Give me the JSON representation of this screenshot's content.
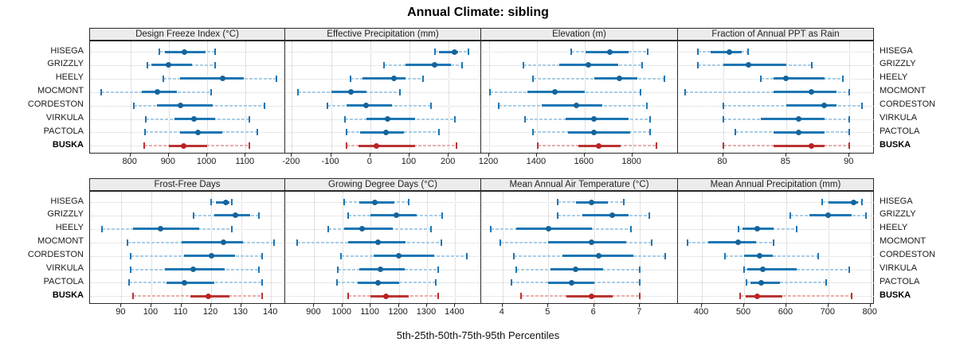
{
  "title": "Annual Climate: sibling",
  "caption": "5th-25th-50th-75th-95th Percentiles",
  "stations": [
    "HISEGA",
    "GRIZZLY",
    "HEELY",
    "MOCMONT",
    "CORDESTON",
    "VIRKULA",
    "PACTOLA",
    "BUSKA"
  ],
  "highlight_station": "BUSKA",
  "colors": {
    "series_main": "#1d76b4",
    "series_dot": "#15649a",
    "series_light": "#a9cde6",
    "highlight_main": "#bb3333",
    "highlight_dot": "#bb2222",
    "highlight_light": "#e9aeae",
    "header_bg": "#ececec",
    "border": "#2a2a2a",
    "grid": "#c4c4c4"
  },
  "chart_data": {
    "type": "scatter",
    "subtype": "dot-and-whisker percentile plot (5th-25th-50th-75th-95th)",
    "percentiles": [
      5,
      25,
      50,
      75,
      95
    ],
    "legend_position": "none",
    "grid": "dotted",
    "categories": [
      "HISEGA",
      "GRIZZLY",
      "HEELY",
      "MOCMONT",
      "CORDESTON",
      "VIRKULA",
      "PACTOLA",
      "BUSKA"
    ],
    "panels": [
      {
        "row": 0,
        "col": 0,
        "title": "Design Freeze Index (°C)",
        "ticks": [
          800,
          900,
          1000,
          1100
        ],
        "domain": [
          695,
          1205
        ],
        "values": [
          [
            875,
            890,
            940,
            995,
            1020
          ],
          [
            845,
            855,
            900,
            960,
            1020
          ],
          [
            885,
            930,
            1040,
            1095,
            1180
          ],
          [
            725,
            830,
            870,
            920,
            1010
          ],
          [
            810,
            870,
            930,
            1015,
            1150
          ],
          [
            840,
            915,
            965,
            1020,
            1110
          ],
          [
            838,
            930,
            975,
            1040,
            1130
          ],
          [
            835,
            900,
            938,
            1000,
            1110
          ]
        ]
      },
      {
        "row": 0,
        "col": 1,
        "title": "Effective Precipitation (mm)",
        "ticks": [
          -200,
          -100,
          0,
          100,
          200
        ],
        "domain": [
          -215,
          285
        ],
        "values": [
          [
            165,
            175,
            215,
            225,
            250
          ],
          [
            35,
            90,
            165,
            205,
            235
          ],
          [
            -50,
            -20,
            60,
            90,
            135
          ],
          [
            -185,
            -100,
            -50,
            -10,
            75
          ],
          [
            -110,
            -60,
            -10,
            55,
            155
          ],
          [
            -65,
            -10,
            45,
            115,
            215
          ],
          [
            -60,
            -25,
            40,
            85,
            175
          ],
          [
            -60,
            -30,
            15,
            115,
            220
          ]
        ]
      },
      {
        "row": 0,
        "col": 2,
        "title": "Elevation (m)",
        "ticks": [
          1200,
          1400,
          1600,
          1800
        ],
        "domain": [
          1170,
          1995
        ],
        "values": [
          [
            1545,
            1605,
            1705,
            1785,
            1865
          ],
          [
            1345,
            1495,
            1615,
            1740,
            1840
          ],
          [
            1385,
            1640,
            1745,
            1820,
            1935
          ],
          [
            1205,
            1360,
            1475,
            1600,
            1835
          ],
          [
            1240,
            1420,
            1565,
            1675,
            1860
          ],
          [
            1350,
            1520,
            1640,
            1785,
            1875
          ],
          [
            1385,
            1530,
            1640,
            1790,
            1875
          ],
          [
            1405,
            1575,
            1660,
            1750,
            1900
          ]
        ]
      },
      {
        "row": 0,
        "col": 3,
        "title": "Fraction of Annual PPT as Rain",
        "ticks": [
          80,
          85,
          90
        ],
        "domain": [
          76.5,
          92
        ],
        "values": [
          [
            78,
            79,
            80.5,
            81.5,
            82
          ],
          [
            78,
            80,
            82,
            85,
            87
          ],
          [
            83,
            84,
            85,
            88,
            89.5
          ],
          [
            77,
            84,
            87,
            89,
            90
          ],
          [
            80,
            85,
            88,
            89,
            91
          ],
          [
            80,
            83,
            86,
            88,
            90
          ],
          [
            81,
            84,
            86,
            88,
            90
          ],
          [
            80,
            84,
            87,
            88,
            90
          ]
        ]
      },
      {
        "row": 1,
        "col": 0,
        "title": "Frost-Free Days",
        "ticks": [
          90,
          100,
          110,
          120,
          130,
          140
        ],
        "domain": [
          79.5,
          145
        ],
        "values": [
          [
            120,
            121.5,
            125,
            126,
            127
          ],
          [
            114,
            121,
            128,
            133,
            136
          ],
          [
            83.5,
            94,
            103,
            116,
            127
          ],
          [
            92,
            110,
            124,
            130.5,
            141
          ],
          [
            93,
            111,
            120,
            128,
            137
          ],
          [
            93,
            104.5,
            114,
            124.5,
            136
          ],
          [
            92.5,
            105,
            111,
            121,
            137
          ],
          [
            94,
            113,
            119,
            126,
            137
          ]
        ]
      },
      {
        "row": 1,
        "col": 1,
        "title": "Growing Degree Days (°C)",
        "ticks": [
          900,
          1000,
          1100,
          1200,
          1300,
          1400
        ],
        "domain": [
          800,
          1495
        ],
        "values": [
          [
            1005,
            1060,
            1115,
            1185,
            1235
          ],
          [
            1020,
            1100,
            1190,
            1263,
            1355
          ],
          [
            950,
            1005,
            1070,
            1180,
            1315
          ],
          [
            840,
            1020,
            1125,
            1225,
            1350
          ],
          [
            995,
            1110,
            1200,
            1325,
            1440
          ],
          [
            985,
            1060,
            1135,
            1220,
            1340
          ],
          [
            980,
            1055,
            1125,
            1200,
            1330
          ],
          [
            1020,
            1100,
            1155,
            1235,
            1340
          ]
        ]
      },
      {
        "row": 1,
        "col": 2,
        "title": "Mean Annual Air Temperature (°C)",
        "ticks": [
          4,
          5,
          6,
          7
        ],
        "domain": [
          3.55,
          7.85
        ],
        "values": [
          [
            5.2,
            5.6,
            5.95,
            6.3,
            6.65
          ],
          [
            5.2,
            5.75,
            6.4,
            6.75,
            7.2
          ],
          [
            3.75,
            4.3,
            5.0,
            5.95,
            6.8
          ],
          [
            3.95,
            5.0,
            5.95,
            6.7,
            7.25
          ],
          [
            4.25,
            5.3,
            6.1,
            6.85,
            7.55
          ],
          [
            4.3,
            5.05,
            5.6,
            6.2,
            7.0
          ],
          [
            4.2,
            5.0,
            5.5,
            6.0,
            7.0
          ],
          [
            4.4,
            5.4,
            5.95,
            6.4,
            7.0
          ]
        ]
      },
      {
        "row": 1,
        "col": 3,
        "title": "Mean Annual Precipitation (mm)",
        "ticks": [
          400,
          500,
          600,
          700,
          800
        ],
        "domain": [
          345,
          810
        ],
        "values": [
          [
            685,
            700,
            760,
            770,
            780
          ],
          [
            610,
            655,
            700,
            755,
            790
          ],
          [
            487,
            496,
            532,
            570,
            625
          ],
          [
            365,
            415,
            485,
            528,
            570
          ],
          [
            455,
            500,
            537,
            568,
            675
          ],
          [
            500,
            508,
            545,
            625,
            750
          ],
          [
            505,
            515,
            540,
            585,
            695
          ],
          [
            490,
            503,
            532,
            590,
            755
          ]
        ]
      }
    ]
  }
}
